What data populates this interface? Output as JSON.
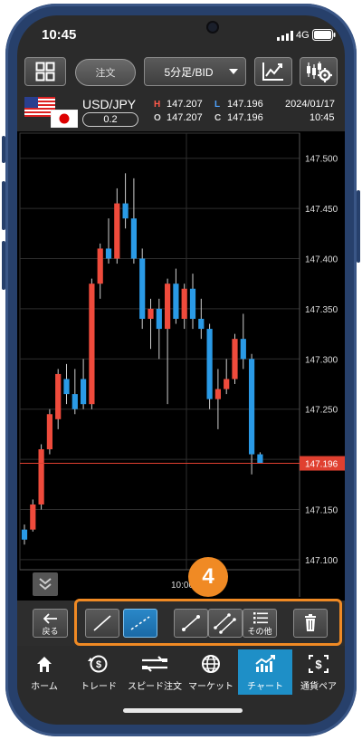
{
  "status_bar": {
    "time": "10:45",
    "network": "4G"
  },
  "toolbar": {
    "order_label": "注文",
    "timeframe_select": "5分足/BID",
    "icons": [
      "grid-icon",
      "chart-add-icon",
      "chart-settings-icon"
    ]
  },
  "quote": {
    "pair": "USD/JPY",
    "spread": "0.2",
    "high_label": "H",
    "high": "147.207",
    "low_label": "L",
    "low": "147.196",
    "open_label": "O",
    "open": "147.207",
    "close_label": "C",
    "close": "147.196",
    "date": "2024/01/17",
    "time": "10:45",
    "colors": {
      "high": "#ff5a4a",
      "low": "#4fa3ff"
    }
  },
  "chart": {
    "price_labels": [
      "147.500",
      "147.450",
      "147.400",
      "147.350",
      "147.300",
      "147.250",
      "147.200",
      "147.150",
      "147.100"
    ],
    "current_price_label": "147.196",
    "time_label": "10:00",
    "colors": {
      "up": "#ef4b3c",
      "down": "#2a9ae6",
      "current": "#e04030"
    }
  },
  "chart_data": {
    "type": "candlestick",
    "ylim": [
      147.09,
      147.525
    ],
    "y_ticks": [
      147.1,
      147.15,
      147.2,
      147.25,
      147.3,
      147.35,
      147.4,
      147.45,
      147.5
    ],
    "current_price": 147.196,
    "candles": [
      {
        "o": 147.13,
        "c": 147.12,
        "h": 147.135,
        "l": 147.115
      },
      {
        "o": 147.13,
        "c": 147.155,
        "h": 147.16,
        "l": 147.128
      },
      {
        "o": 147.155,
        "c": 147.21,
        "h": 147.215,
        "l": 147.15
      },
      {
        "o": 147.21,
        "c": 147.245,
        "h": 147.25,
        "l": 147.205
      },
      {
        "o": 147.24,
        "c": 147.285,
        "h": 147.29,
        "l": 147.23
      },
      {
        "o": 147.28,
        "c": 147.265,
        "h": 147.295,
        "l": 147.255
      },
      {
        "o": 147.265,
        "c": 147.25,
        "h": 147.29,
        "l": 147.245
      },
      {
        "o": 147.28,
        "c": 147.255,
        "h": 147.3,
        "l": 147.25
      },
      {
        "o": 147.255,
        "c": 147.375,
        "h": 147.38,
        "l": 147.25
      },
      {
        "o": 147.375,
        "c": 147.41,
        "h": 147.415,
        "l": 147.36
      },
      {
        "o": 147.41,
        "c": 147.4,
        "h": 147.44,
        "l": 147.395
      },
      {
        "o": 147.4,
        "c": 147.455,
        "h": 147.47,
        "l": 147.395
      },
      {
        "o": 147.455,
        "c": 147.44,
        "h": 147.485,
        "l": 147.43
      },
      {
        "o": 147.44,
        "c": 147.4,
        "h": 147.48,
        "l": 147.395
      },
      {
        "o": 147.4,
        "c": 147.34,
        "h": 147.41,
        "l": 147.33
      },
      {
        "o": 147.34,
        "c": 147.35,
        "h": 147.36,
        "l": 147.31
      },
      {
        "o": 147.35,
        "c": 147.33,
        "h": 147.36,
        "l": 147.3
      },
      {
        "o": 147.33,
        "c": 147.375,
        "h": 147.38,
        "l": 147.255
      },
      {
        "o": 147.375,
        "c": 147.34,
        "h": 147.39,
        "l": 147.335
      },
      {
        "o": 147.34,
        "c": 147.37,
        "h": 147.375,
        "l": 147.33
      },
      {
        "o": 147.37,
        "c": 147.34,
        "h": 147.385,
        "l": 147.33
      },
      {
        "o": 147.34,
        "c": 147.33,
        "h": 147.36,
        "l": 147.32
      },
      {
        "o": 147.33,
        "c": 147.26,
        "h": 147.335,
        "l": 147.25
      },
      {
        "o": 147.26,
        "c": 147.27,
        "h": 147.29,
        "l": 147.23
      },
      {
        "o": 147.27,
        "c": 147.28,
        "h": 147.3,
        "l": 147.265
      },
      {
        "o": 147.28,
        "c": 147.32,
        "h": 147.325,
        "l": 147.275
      },
      {
        "o": 147.32,
        "c": 147.3,
        "h": 147.345,
        "l": 147.29
      },
      {
        "o": 147.3,
        "c": 147.205,
        "h": 147.305,
        "l": 147.185
      },
      {
        "o": 147.205,
        "c": 147.196,
        "h": 147.207,
        "l": 147.196
      }
    ]
  },
  "drawing_toolbar": {
    "back_label": "戻る",
    "other_label": "その他",
    "step_badge": "4",
    "tools": [
      "line-tool",
      "dashed-line-tool",
      "trend-line-tool",
      "parallel-line-tool",
      "more-tools",
      "delete-tool"
    ]
  },
  "tabs": [
    {
      "label": "ホーム",
      "icon": "home-icon",
      "active": false
    },
    {
      "label": "トレード",
      "icon": "trade-icon",
      "active": false
    },
    {
      "label": "スピード注文",
      "icon": "speed-order-icon",
      "active": false
    },
    {
      "label": "マーケット",
      "icon": "market-icon",
      "active": false
    },
    {
      "label": "チャート",
      "icon": "chart-icon",
      "active": true
    },
    {
      "label": "通貨ペア",
      "icon": "currency-pair-icon",
      "active": false
    }
  ]
}
